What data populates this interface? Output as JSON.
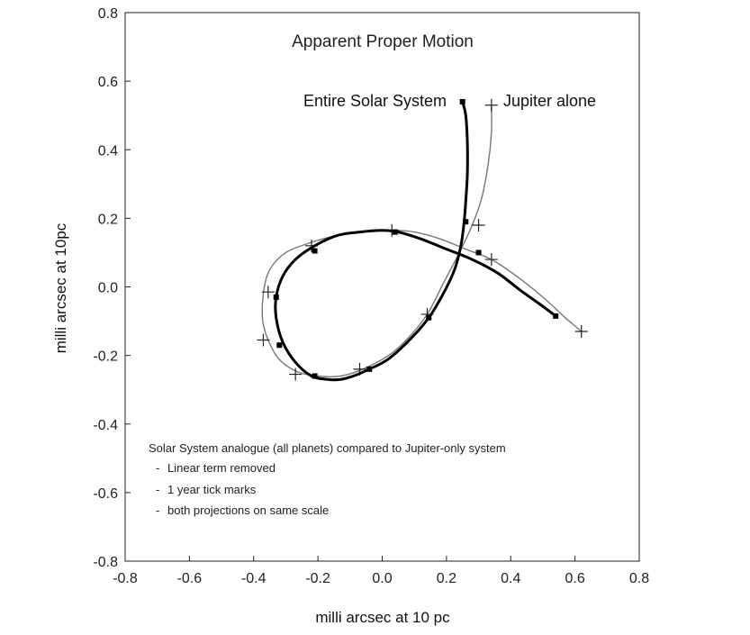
{
  "chart_data": {
    "type": "line",
    "title": "Apparent Proper Motion",
    "xlabel": "milli arcsec at 10 pc",
    "ylabel": "milli arcsec at 10pc",
    "xlim": [
      -0.8,
      0.8
    ],
    "ylim": [
      -0.8,
      0.8
    ],
    "grid": false,
    "x_ticks": [
      "-0.8",
      "-0.6",
      "-0.4",
      "-0.2",
      "0.0",
      "0.2",
      "0.4",
      "0.6",
      "0.8"
    ],
    "y_ticks": [
      "0.8",
      "0.6",
      "0.4",
      "0.2",
      "0.0",
      "-0.2",
      "-0.4",
      "-0.6",
      "-0.8"
    ],
    "series": [
      {
        "name": "Entire Solar System",
        "color": "#000000",
        "line_width": "thick",
        "x": [
          0.25,
          0.26,
          0.265,
          0.265,
          0.26,
          0.255,
          0.245,
          0.225,
          0.19,
          0.145,
          0.09,
          0.02,
          -0.04,
          -0.09,
          -0.13,
          -0.17,
          -0.22,
          -0.27,
          -0.31,
          -0.33,
          -0.33,
          -0.31,
          -0.27,
          -0.21,
          -0.14,
          -0.07,
          0.0,
          0.05,
          0.12,
          0.2,
          0.28,
          0.36,
          0.43,
          0.49,
          0.54
        ],
        "y": [
          0.54,
          0.5,
          0.42,
          0.33,
          0.25,
          0.19,
          0.12,
          0.05,
          -0.02,
          -0.09,
          -0.15,
          -0.21,
          -0.24,
          -0.26,
          -0.27,
          -0.27,
          -0.26,
          -0.22,
          -0.16,
          -0.09,
          -0.03,
          0.03,
          0.08,
          0.12,
          0.15,
          0.16,
          0.165,
          0.16,
          0.14,
          0.11,
          0.08,
          0.04,
          -0.01,
          -0.05,
          -0.085
        ],
        "year_ticks": [
          [
            0.25,
            0.54
          ],
          [
            0.26,
            0.19
          ],
          [
            0.145,
            -0.09
          ],
          [
            -0.04,
            -0.24
          ],
          [
            -0.21,
            -0.26
          ],
          [
            -0.32,
            -0.17
          ],
          [
            -0.33,
            -0.03
          ],
          [
            -0.21,
            0.105
          ],
          [
            0.04,
            0.16
          ],
          [
            0.3,
            0.1
          ],
          [
            0.54,
            -0.085
          ]
        ]
      },
      {
        "name": "Jupiter alone",
        "color": "#777777",
        "line_width": "thin",
        "x": [
          0.34,
          0.34,
          0.33,
          0.31,
          0.28,
          0.24,
          0.19,
          0.14,
          0.08,
          0.02,
          -0.06,
          -0.13,
          -0.2,
          -0.27,
          -0.33,
          -0.37,
          -0.37,
          -0.35,
          -0.3,
          -0.22,
          -0.14,
          -0.06,
          0.03,
          0.1,
          0.18,
          0.26,
          0.34,
          0.42,
          0.5,
          0.57,
          0.62
        ],
        "y": [
          0.53,
          0.45,
          0.36,
          0.26,
          0.18,
          0.1,
          0.01,
          -0.08,
          -0.15,
          -0.2,
          -0.24,
          -0.26,
          -0.26,
          -0.245,
          -0.2,
          -0.11,
          -0.02,
          0.05,
          0.1,
          0.13,
          0.15,
          0.16,
          0.165,
          0.16,
          0.14,
          0.11,
          0.08,
          0.03,
          -0.03,
          -0.09,
          -0.13
        ],
        "year_ticks": [
          [
            0.34,
            0.53
          ],
          [
            0.3,
            0.18
          ],
          [
            0.14,
            -0.08
          ],
          [
            -0.07,
            -0.24
          ],
          [
            -0.27,
            -0.255
          ],
          [
            -0.37,
            -0.155
          ],
          [
            -0.355,
            -0.015
          ],
          [
            -0.22,
            0.12
          ],
          [
            0.03,
            0.165
          ],
          [
            0.34,
            0.08
          ],
          [
            0.62,
            -0.13
          ]
        ]
      }
    ],
    "annotations": {
      "heading": "Solar  System analogue (all planets) compared to Jupiter-only system",
      "bullets": [
        "Linear term removed",
        "1 year tick marks",
        "both projections on same scale"
      ],
      "bullet_mark": "-"
    }
  }
}
